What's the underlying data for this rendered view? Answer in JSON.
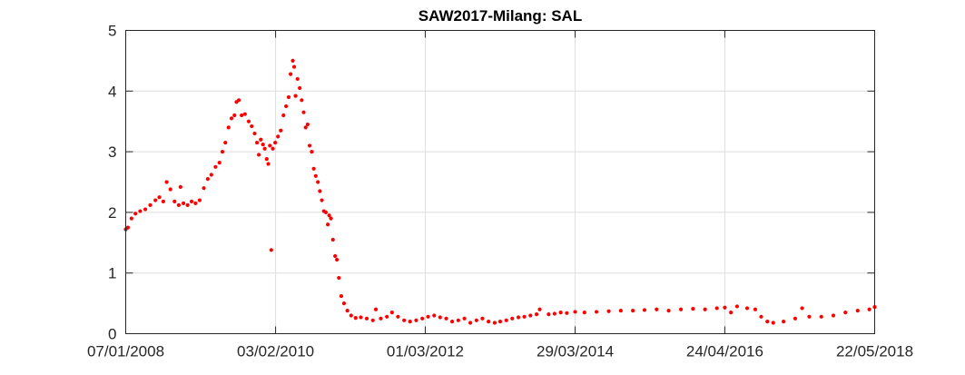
{
  "chart_data": {
    "type": "scatter",
    "title": "SAW2017-Milang: SAL",
    "xlabel": "",
    "ylabel": "",
    "x_ticks": [
      "07/01/2008",
      "03/02/2010",
      "01/03/2012",
      "29/03/2014",
      "24/04/2016",
      "22/05/2018"
    ],
    "x_tick_dates": [
      "2008-01-07",
      "2010-02-03",
      "2012-03-01",
      "2014-03-29",
      "2016-04-24",
      "2018-05-22"
    ],
    "xlim": [
      "2008-01-07",
      "2018-05-22"
    ],
    "ylim": [
      0,
      5
    ],
    "y_ticks": [
      0,
      1,
      2,
      3,
      4,
      5
    ],
    "grid": true,
    "marker_color": "#ff0000",
    "series": [
      {
        "points": [
          [
            "2008-01-07",
            1.72
          ],
          [
            "2008-01-18",
            1.75
          ],
          [
            "2008-02-05",
            1.9
          ],
          [
            "2008-02-25",
            1.98
          ],
          [
            "2008-03-20",
            2.02
          ],
          [
            "2008-04-15",
            2.05
          ],
          [
            "2008-05-10",
            2.12
          ],
          [
            "2008-06-05",
            2.2
          ],
          [
            "2008-06-25",
            2.25
          ],
          [
            "2008-07-15",
            2.18
          ],
          [
            "2008-08-01",
            2.5
          ],
          [
            "2008-08-20",
            2.38
          ],
          [
            "2008-09-10",
            2.18
          ],
          [
            "2008-10-01",
            2.12
          ],
          [
            "2008-10-10",
            2.42
          ],
          [
            "2008-10-25",
            2.15
          ],
          [
            "2008-11-15",
            2.12
          ],
          [
            "2008-12-05",
            2.18
          ],
          [
            "2008-12-25",
            2.15
          ],
          [
            "2009-01-15",
            2.2
          ],
          [
            "2009-02-05",
            2.4
          ],
          [
            "2009-02-25",
            2.55
          ],
          [
            "2009-03-15",
            2.62
          ],
          [
            "2009-04-05",
            2.75
          ],
          [
            "2009-04-25",
            2.82
          ],
          [
            "2009-05-10",
            3.0
          ],
          [
            "2009-05-25",
            3.15
          ],
          [
            "2009-06-10",
            3.4
          ],
          [
            "2009-06-25",
            3.55
          ],
          [
            "2009-07-10",
            3.6
          ],
          [
            "2009-07-20",
            3.82
          ],
          [
            "2009-08-01",
            3.85
          ],
          [
            "2009-08-15",
            3.6
          ],
          [
            "2009-09-01",
            3.62
          ],
          [
            "2009-09-20",
            3.5
          ],
          [
            "2009-10-05",
            3.42
          ],
          [
            "2009-10-20",
            3.3
          ],
          [
            "2009-11-01",
            3.15
          ],
          [
            "2009-11-10",
            2.95
          ],
          [
            "2009-11-20",
            3.2
          ],
          [
            "2009-12-01",
            3.12
          ],
          [
            "2009-12-10",
            3.05
          ],
          [
            "2009-12-20",
            2.88
          ],
          [
            "2009-12-28",
            2.8
          ],
          [
            "2010-01-05",
            3.1
          ],
          [
            "2010-01-12",
            1.38
          ],
          [
            "2010-01-20",
            3.05
          ],
          [
            "2010-02-01",
            3.15
          ],
          [
            "2010-02-15",
            3.25
          ],
          [
            "2010-03-01",
            3.35
          ],
          [
            "2010-03-15",
            3.6
          ],
          [
            "2010-03-28",
            3.75
          ],
          [
            "2010-04-10",
            3.9
          ],
          [
            "2010-04-20",
            4.28
          ],
          [
            "2010-05-01",
            4.5
          ],
          [
            "2010-05-08",
            4.4
          ],
          [
            "2010-05-15",
            3.92
          ],
          [
            "2010-05-25",
            4.2
          ],
          [
            "2010-06-05",
            4.05
          ],
          [
            "2010-06-15",
            3.85
          ],
          [
            "2010-06-25",
            3.65
          ],
          [
            "2010-07-05",
            3.4
          ],
          [
            "2010-07-15",
            3.45
          ],
          [
            "2010-07-25",
            3.1
          ],
          [
            "2010-08-05",
            3.0
          ],
          [
            "2010-08-15",
            2.72
          ],
          [
            "2010-08-25",
            2.6
          ],
          [
            "2010-09-05",
            2.5
          ],
          [
            "2010-09-15",
            2.35
          ],
          [
            "2010-09-25",
            2.2
          ],
          [
            "2010-10-05",
            2.02
          ],
          [
            "2010-10-15",
            2.0
          ],
          [
            "2010-10-25",
            1.8
          ],
          [
            "2010-11-01",
            1.95
          ],
          [
            "2010-11-10",
            1.9
          ],
          [
            "2010-11-20",
            1.55
          ],
          [
            "2010-12-01",
            1.28
          ],
          [
            "2010-12-10",
            1.22
          ],
          [
            "2010-12-20",
            0.92
          ],
          [
            "2011-01-01",
            0.62
          ],
          [
            "2011-01-15",
            0.5
          ],
          [
            "2011-02-01",
            0.38
          ],
          [
            "2011-02-20",
            0.3
          ],
          [
            "2011-03-15",
            0.26
          ],
          [
            "2011-04-10",
            0.27
          ],
          [
            "2011-05-10",
            0.25
          ],
          [
            "2011-06-10",
            0.22
          ],
          [
            "2011-06-25",
            0.4
          ],
          [
            "2011-07-20",
            0.25
          ],
          [
            "2011-08-20",
            0.28
          ],
          [
            "2011-09-15",
            0.35
          ],
          [
            "2011-10-15",
            0.28
          ],
          [
            "2011-11-15",
            0.22
          ],
          [
            "2011-12-15",
            0.2
          ],
          [
            "2012-01-15",
            0.22
          ],
          [
            "2012-02-15",
            0.25
          ],
          [
            "2012-03-15",
            0.28
          ],
          [
            "2012-04-15",
            0.3
          ],
          [
            "2012-05-15",
            0.27
          ],
          [
            "2012-06-15",
            0.25
          ],
          [
            "2012-07-15",
            0.2
          ],
          [
            "2012-08-15",
            0.22
          ],
          [
            "2012-09-15",
            0.25
          ],
          [
            "2012-10-15",
            0.18
          ],
          [
            "2012-11-15",
            0.22
          ],
          [
            "2012-12-15",
            0.25
          ],
          [
            "2013-01-15",
            0.2
          ],
          [
            "2013-02-15",
            0.18
          ],
          [
            "2013-03-15",
            0.2
          ],
          [
            "2013-04-15",
            0.22
          ],
          [
            "2013-05-15",
            0.25
          ],
          [
            "2013-06-15",
            0.27
          ],
          [
            "2013-07-15",
            0.28
          ],
          [
            "2013-08-15",
            0.3
          ],
          [
            "2013-09-15",
            0.32
          ],
          [
            "2013-10-01",
            0.4
          ],
          [
            "2013-11-15",
            0.32
          ],
          [
            "2013-12-15",
            0.33
          ],
          [
            "2014-01-15",
            0.35
          ],
          [
            "2014-02-15",
            0.34
          ],
          [
            "2014-03-29",
            0.36
          ],
          [
            "2014-05-15",
            0.35
          ],
          [
            "2014-07-15",
            0.36
          ],
          [
            "2014-09-15",
            0.37
          ],
          [
            "2014-11-15",
            0.38
          ],
          [
            "2015-01-15",
            0.38
          ],
          [
            "2015-03-15",
            0.39
          ],
          [
            "2015-05-15",
            0.4
          ],
          [
            "2015-07-15",
            0.38
          ],
          [
            "2015-09-15",
            0.4
          ],
          [
            "2015-11-15",
            0.41
          ],
          [
            "2016-01-15",
            0.4
          ],
          [
            "2016-03-15",
            0.42
          ],
          [
            "2016-04-24",
            0.43
          ],
          [
            "2016-05-25",
            0.35
          ],
          [
            "2016-06-25",
            0.45
          ],
          [
            "2016-08-15",
            0.42
          ],
          [
            "2016-09-25",
            0.4
          ],
          [
            "2016-10-25",
            0.28
          ],
          [
            "2016-11-25",
            0.2
          ],
          [
            "2016-12-25",
            0.18
          ],
          [
            "2017-02-15",
            0.2
          ],
          [
            "2017-04-15",
            0.25
          ],
          [
            "2017-05-20",
            0.42
          ],
          [
            "2017-06-25",
            0.28
          ],
          [
            "2017-08-25",
            0.28
          ],
          [
            "2017-10-25",
            0.3
          ],
          [
            "2017-12-25",
            0.35
          ],
          [
            "2018-02-25",
            0.38
          ],
          [
            "2018-04-25",
            0.4
          ],
          [
            "2018-05-22",
            0.44
          ]
        ]
      }
    ]
  }
}
